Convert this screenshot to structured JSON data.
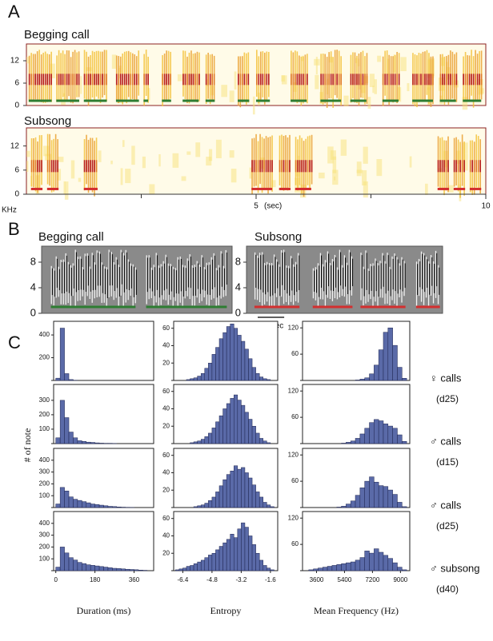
{
  "panel_labels": [
    "A",
    "B",
    "C"
  ],
  "spectrograms_a": {
    "ylabel": "KHz",
    "unit": "(sec)",
    "xlim": [
      0,
      10
    ],
    "xticks": [
      5,
      10
    ],
    "minor_xticks": [
      2.5,
      7.5
    ],
    "items": [
      {
        "title": "Begging call",
        "ylim": [
          0,
          16.5
        ],
        "yticks": [
          0,
          6,
          12
        ],
        "segment_color": "#2e7d32",
        "segments": [
          [
            0.05,
            0.55
          ],
          [
            0.65,
            1.15
          ],
          [
            1.25,
            1.75
          ],
          [
            1.95,
            2.45
          ],
          [
            2.55,
            2.65
          ],
          [
            2.95,
            3.15
          ],
          [
            3.4,
            3.75
          ],
          [
            3.9,
            4.1
          ],
          [
            4.6,
            4.85
          ],
          [
            5.0,
            5.3
          ],
          [
            5.75,
            6.1
          ],
          [
            6.4,
            6.85
          ],
          [
            7.05,
            7.4
          ],
          [
            7.75,
            8.1
          ],
          [
            8.4,
            8.85
          ],
          [
            9.0,
            9.35
          ],
          [
            9.5,
            9.9
          ]
        ]
      },
      {
        "title": "Subsong",
        "ylim": [
          0,
          16.5
        ],
        "yticks": [
          0,
          6,
          12
        ],
        "segment_color": "#d32f2f",
        "segments": [
          [
            0.1,
            0.35
          ],
          [
            0.45,
            0.7
          ],
          [
            1.25,
            1.55
          ],
          [
            4.9,
            5.35
          ],
          [
            5.5,
            5.75
          ],
          [
            5.85,
            6.2
          ],
          [
            8.95,
            9.2
          ],
          [
            9.3,
            9.55
          ],
          [
            9.65,
            9.9
          ]
        ]
      }
    ]
  },
  "spectrograms_b": {
    "scale_bar": {
      "value": 0.1,
      "label": "0.1 sec"
    },
    "items": [
      {
        "title": "Begging call",
        "xlim": [
          0,
          0.72
        ],
        "ylim": [
          0,
          10.5
        ],
        "yticks": [
          0,
          4,
          8
        ],
        "segment_color": "#2e7d32",
        "segments": [
          [
            0.035,
            0.355
          ],
          [
            0.395,
            0.7
          ]
        ]
      },
      {
        "title": "Subsong",
        "xlim": [
          0,
          0.74
        ],
        "ylim": [
          0,
          10.5
        ],
        "yticks": [
          0,
          4,
          8
        ],
        "segment_color": "#d32f2f",
        "segments": [
          [
            0.03,
            0.2
          ],
          [
            0.25,
            0.4
          ],
          [
            0.43,
            0.6
          ],
          [
            0.64,
            0.73
          ]
        ]
      }
    ]
  },
  "ylabel_c": "# of note",
  "row_labels": [
    [
      "♀ calls",
      "(d25)"
    ],
    [
      "♂ calls",
      "(d15)"
    ],
    [
      "♂ calls",
      "(d25)"
    ],
    [
      "♂ subsong",
      "(d40)"
    ]
  ],
  "chart_data": [
    {
      "type": "histogram",
      "color": "#5a6aa8",
      "xlim": [
        -10,
        450
      ],
      "ylim": [
        0,
        520
      ],
      "yticks": [
        0,
        200,
        400
      ],
      "bins": [
        0,
        20,
        40,
        60,
        80,
        100,
        120,
        140,
        160,
        180,
        200,
        220,
        240,
        260,
        280,
        300,
        320,
        340,
        360,
        380,
        400,
        420
      ],
      "counts": [
        20,
        460,
        60,
        8,
        2,
        0,
        0,
        0,
        0,
        0,
        0,
        0,
        0,
        0,
        0,
        0,
        0,
        0,
        0,
        0,
        0
      ]
    },
    {
      "type": "histogram",
      "color": "#5a6aa8",
      "xlim": [
        -6.9,
        -1.2
      ],
      "ylim": [
        0,
        68
      ],
      "yticks": [
        0,
        20,
        40,
        60
      ],
      "bins": [
        -6.8,
        -6.6,
        -6.4,
        -6.2,
        -6.0,
        -5.8,
        -5.6,
        -5.4,
        -5.2,
        -5.0,
        -4.8,
        -4.6,
        -4.4,
        -4.2,
        -4.0,
        -3.8,
        -3.6,
        -3.4,
        -3.2,
        -3.0,
        -2.8,
        -2.6,
        -2.4,
        -2.2,
        -2.0,
        -1.8,
        -1.6,
        -1.4,
        -1.2
      ],
      "counts": [
        0,
        0,
        0,
        1,
        2,
        3,
        5,
        8,
        14,
        20,
        30,
        38,
        48,
        55,
        62,
        65,
        60,
        52,
        45,
        36,
        25,
        15,
        8,
        4,
        2,
        1,
        0,
        0
      ]
    },
    {
      "type": "histogram",
      "color": "#5a6aa8",
      "xlim": [
        2700,
        9600
      ],
      "ylim": [
        0,
        135
      ],
      "yticks": [
        0,
        60,
        120
      ],
      "bins": [
        2800,
        3100,
        3400,
        3700,
        4000,
        4300,
        4600,
        4900,
        5200,
        5500,
        5800,
        6100,
        6400,
        6700,
        7000,
        7300,
        7600,
        7900,
        8200,
        8500,
        8800,
        9100,
        9400
      ],
      "counts": [
        0,
        0,
        0,
        0,
        0,
        0,
        0,
        0,
        0,
        0,
        0,
        1,
        3,
        6,
        15,
        35,
        70,
        110,
        120,
        80,
        30,
        5
      ]
    },
    {
      "type": "histogram",
      "color": "#5a6aa8",
      "xlim": [
        -10,
        450
      ],
      "ylim": [
        0,
        410
      ],
      "yticks": [
        0,
        100,
        200,
        300
      ],
      "bins": [
        0,
        20,
        40,
        60,
        80,
        100,
        120,
        140,
        160,
        180,
        200,
        220,
        240,
        260,
        280,
        300,
        320,
        340,
        360,
        380,
        400,
        420
      ],
      "counts": [
        40,
        300,
        180,
        80,
        40,
        20,
        15,
        10,
        8,
        5,
        3,
        2,
        2,
        1,
        0,
        0,
        0,
        0,
        0,
        0,
        0
      ]
    },
    {
      "type": "histogram",
      "color": "#5a6aa8",
      "xlim": [
        -6.9,
        -1.2
      ],
      "ylim": [
        0,
        68
      ],
      "yticks": [
        0,
        20,
        40,
        60
      ],
      "bins": [
        -6.8,
        -6.6,
        -6.4,
        -6.2,
        -6.0,
        -5.8,
        -5.6,
        -5.4,
        -5.2,
        -5.0,
        -4.8,
        -4.6,
        -4.4,
        -4.2,
        -4.0,
        -3.8,
        -3.6,
        -3.4,
        -3.2,
        -3.0,
        -2.8,
        -2.6,
        -2.4,
        -2.2,
        -2.0,
        -1.8,
        -1.6,
        -1.4,
        -1.2
      ],
      "counts": [
        0,
        0,
        0,
        0,
        1,
        2,
        3,
        5,
        8,
        12,
        18,
        25,
        32,
        40,
        46,
        52,
        56,
        50,
        44,
        36,
        28,
        20,
        12,
        6,
        3,
        1,
        0,
        0
      ]
    },
    {
      "type": "histogram",
      "color": "#5a6aa8",
      "xlim": [
        2700,
        9600
      ],
      "ylim": [
        0,
        135
      ],
      "yticks": [
        0,
        60,
        120
      ],
      "bins": [
        2800,
        3100,
        3400,
        3700,
        4000,
        4300,
        4600,
        4900,
        5200,
        5500,
        5800,
        6100,
        6400,
        6700,
        7000,
        7300,
        7600,
        7900,
        8200,
        8500,
        8800,
        9100,
        9400
      ],
      "counts": [
        0,
        0,
        0,
        0,
        0,
        0,
        0,
        0,
        1,
        3,
        6,
        12,
        22,
        35,
        48,
        55,
        52,
        45,
        40,
        35,
        20,
        5
      ]
    },
    {
      "type": "histogram",
      "color": "#5a6aa8",
      "xlim": [
        -10,
        450
      ],
      "ylim": [
        0,
        500
      ],
      "yticks": [
        0,
        100,
        200,
        300,
        400
      ],
      "bins": [
        0,
        20,
        40,
        60,
        80,
        100,
        120,
        140,
        160,
        180,
        200,
        220,
        240,
        260,
        280,
        300,
        320,
        340,
        360,
        380,
        400,
        420
      ],
      "counts": [
        30,
        170,
        140,
        90,
        70,
        60,
        50,
        40,
        30,
        25,
        20,
        15,
        10,
        8,
        5,
        3,
        2,
        1,
        0,
        0,
        0
      ]
    },
    {
      "type": "histogram",
      "color": "#5a6aa8",
      "xlim": [
        -6.9,
        -1.2
      ],
      "ylim": [
        0,
        68
      ],
      "yticks": [
        0,
        20,
        40,
        60
      ],
      "bins": [
        -6.8,
        -6.6,
        -6.4,
        -6.2,
        -6.0,
        -5.8,
        -5.6,
        -5.4,
        -5.2,
        -5.0,
        -4.8,
        -4.6,
        -4.4,
        -4.2,
        -4.0,
        -3.8,
        -3.6,
        -3.4,
        -3.2,
        -3.0,
        -2.8,
        -2.6,
        -2.4,
        -2.2,
        -2.0,
        -1.8,
        -1.6,
        -1.4,
        -1.2
      ],
      "counts": [
        0,
        0,
        0,
        0,
        0,
        1,
        2,
        3,
        5,
        8,
        12,
        18,
        25,
        32,
        38,
        42,
        48,
        44,
        46,
        40,
        34,
        26,
        18,
        12,
        6,
        3,
        1,
        0
      ]
    },
    {
      "type": "histogram",
      "color": "#5a6aa8",
      "xlim": [
        2700,
        9600
      ],
      "ylim": [
        0,
        135
      ],
      "yticks": [
        0,
        60,
        120
      ],
      "bins": [
        2800,
        3100,
        3400,
        3700,
        4000,
        4300,
        4600,
        4900,
        5200,
        5500,
        5800,
        6100,
        6400,
        6700,
        7000,
        7300,
        7600,
        7900,
        8200,
        8500,
        8800,
        9100,
        9400
      ],
      "counts": [
        0,
        0,
        0,
        0,
        0,
        0,
        0,
        1,
        3,
        8,
        15,
        28,
        45,
        60,
        70,
        58,
        50,
        48,
        40,
        30,
        12,
        2
      ]
    },
    {
      "type": "histogram",
      "color": "#5a6aa8",
      "xlim": [
        -10,
        450
      ],
      "ylim": [
        0,
        500
      ],
      "yticks": [
        0,
        100,
        200,
        300,
        400
      ],
      "xticks": [
        0,
        180,
        360
      ],
      "xlabel": "Duration (ms)",
      "bins": [
        0,
        20,
        40,
        60,
        80,
        100,
        120,
        140,
        160,
        180,
        200,
        220,
        240,
        260,
        280,
        300,
        320,
        340,
        360,
        380,
        400,
        420
      ],
      "counts": [
        30,
        200,
        150,
        110,
        90,
        70,
        60,
        50,
        45,
        40,
        35,
        30,
        25,
        20,
        18,
        15,
        12,
        10,
        8,
        5,
        3
      ]
    },
    {
      "type": "histogram",
      "color": "#5a6aa8",
      "xlim": [
        -6.9,
        -1.2
      ],
      "ylim": [
        0,
        68
      ],
      "yticks": [
        0,
        20,
        40,
        60
      ],
      "xticks": [
        -6.4,
        -4.8,
        -3.2,
        -1.6
      ],
      "xlabel": "Entropy",
      "bins": [
        -6.8,
        -6.6,
        -6.4,
        -6.2,
        -6.0,
        -5.8,
        -5.6,
        -5.4,
        -5.2,
        -5.0,
        -4.8,
        -4.6,
        -4.4,
        -4.2,
        -4.0,
        -3.8,
        -3.6,
        -3.4,
        -3.2,
        -3.0,
        -2.8,
        -2.6,
        -2.4,
        -2.2,
        -2.0,
        -1.8,
        -1.6,
        -1.4,
        -1.2
      ],
      "counts": [
        1,
        2,
        3,
        5,
        6,
        8,
        10,
        12,
        15,
        18,
        20,
        24,
        28,
        32,
        36,
        42,
        38,
        48,
        55,
        50,
        40,
        30,
        20,
        12,
        6,
        3,
        1,
        0
      ]
    },
    {
      "type": "histogram",
      "color": "#5a6aa8",
      "xlim": [
        2700,
        9600
      ],
      "ylim": [
        0,
        135
      ],
      "yticks": [
        0,
        60,
        120
      ],
      "xticks": [
        3600,
        5400,
        7200,
        9000
      ],
      "xlabel": "Mean Frequency (Hz)",
      "bins": [
        2800,
        3100,
        3400,
        3700,
        4000,
        4300,
        4600,
        4900,
        5200,
        5500,
        5800,
        6100,
        6400,
        6700,
        7000,
        7300,
        7600,
        7900,
        8200,
        8500,
        8800,
        9100,
        9400
      ],
      "counts": [
        0,
        2,
        4,
        6,
        8,
        10,
        12,
        14,
        16,
        18,
        20,
        24,
        30,
        45,
        40,
        50,
        42,
        35,
        28,
        18,
        8,
        2
      ]
    }
  ]
}
